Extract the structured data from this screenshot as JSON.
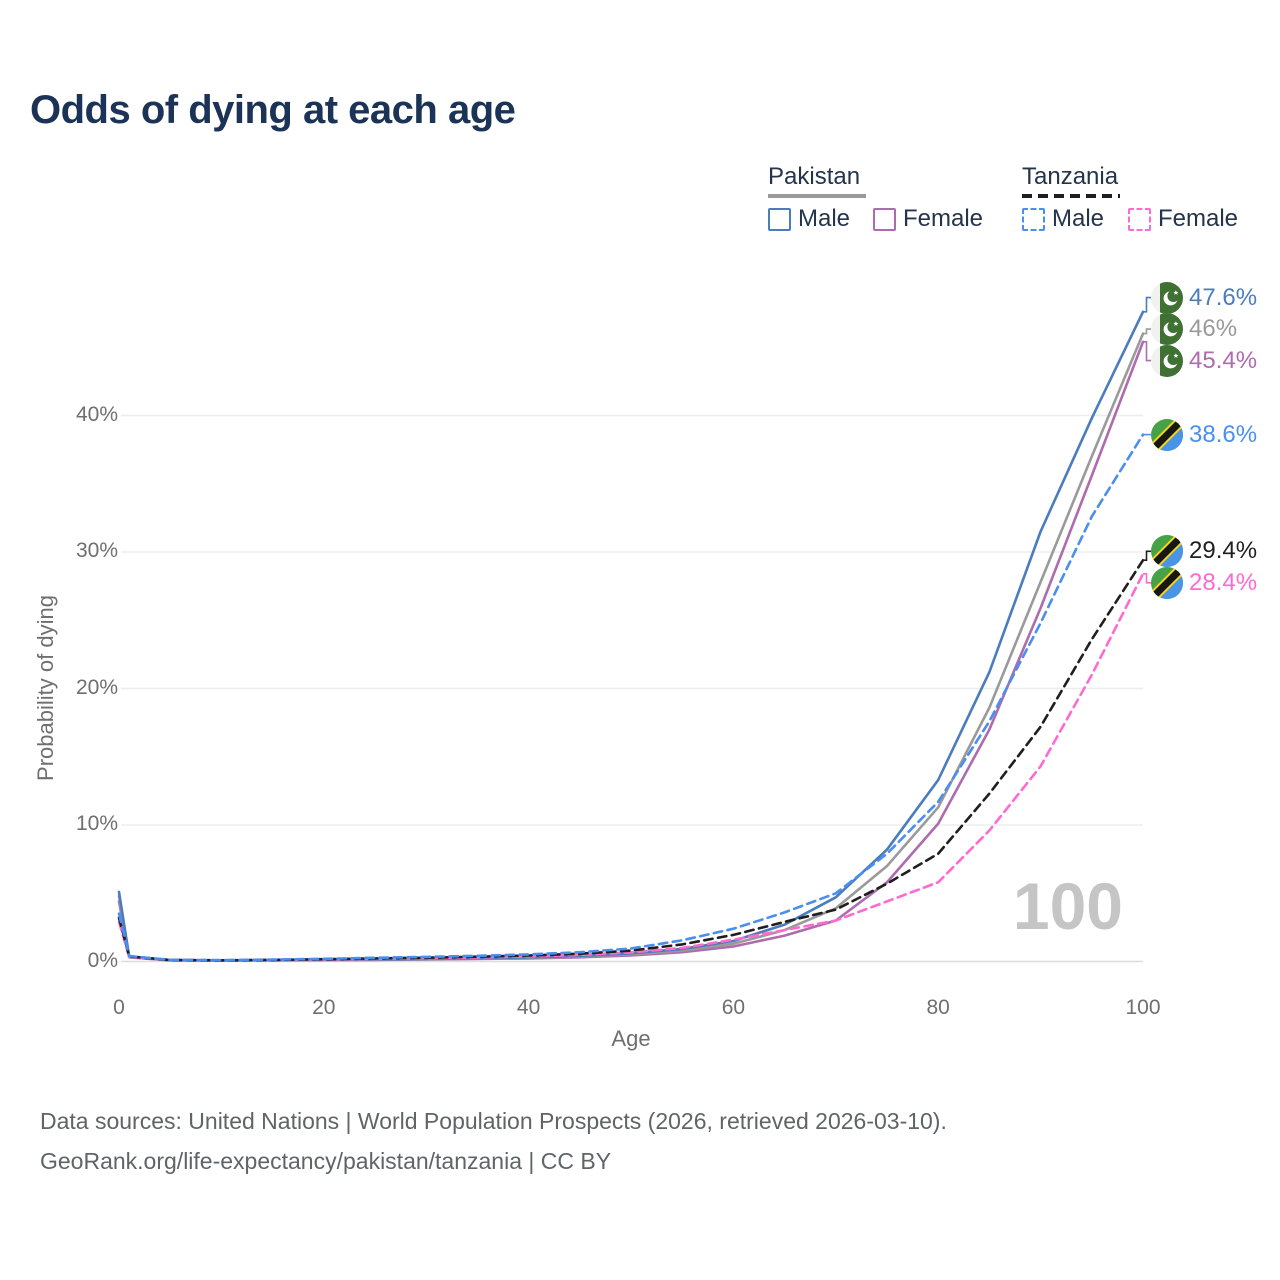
{
  "title": "Odds of dying at each age",
  "age_counter": "100",
  "legend": {
    "groups": [
      {
        "name": "Pakistan",
        "line_style": "solid",
        "underline_color": "#9a9a9a",
        "items": [
          {
            "label": "Male",
            "color": "#4a7cbe"
          },
          {
            "label": "Female",
            "color": "#ae6cae"
          }
        ]
      },
      {
        "name": "Tanzania",
        "line_style": "dashed",
        "underline_color": "#1f1f1f",
        "items": [
          {
            "label": "Male",
            "color": "#4a8ef0"
          },
          {
            "label": "Female",
            "color": "#ff6ad1"
          }
        ]
      }
    ]
  },
  "axes": {
    "x_ticks": [
      {
        "label": "0",
        "value": 0
      },
      {
        "label": "20",
        "value": 20
      },
      {
        "label": "40",
        "value": 40
      },
      {
        "label": "60",
        "value": 60
      },
      {
        "label": "80",
        "value": 80
      },
      {
        "label": "100",
        "value": 100
      }
    ],
    "y_ticks": [
      {
        "label": "0%",
        "value": 0
      },
      {
        "label": "10%",
        "value": 10
      },
      {
        "label": "20%",
        "value": 20
      },
      {
        "label": "30%",
        "value": 30
      },
      {
        "label": "40%",
        "value": 40
      }
    ]
  },
  "footer": {
    "line1": "Data sources: United Nations | World Population Prospects (2026, retrieved 2026-03-10).",
    "line2": "GeoRank.org/life-expectancy/pakistan/tanzania | CC BY"
  },
  "chart_data": {
    "type": "line",
    "title": "Odds of dying at each age",
    "xlabel": "Age",
    "ylabel": "Probability of dying",
    "xlim": [
      0,
      100
    ],
    "ylim": [
      0,
      48
    ],
    "grid": true,
    "legend_position": "top-right",
    "x": [
      0,
      1,
      5,
      10,
      15,
      20,
      25,
      30,
      35,
      40,
      45,
      50,
      55,
      60,
      65,
      70,
      75,
      80,
      85,
      90,
      95,
      100
    ],
    "series": [
      {
        "name": "Pakistan Female",
        "country": "pakistan",
        "style": "solid",
        "color": "#ae6cae",
        "end_label": "45.4%",
        "values": [
          4.4,
          0.31,
          0.08,
          0.06,
          0.08,
          0.1,
          0.12,
          0.15,
          0.18,
          0.23,
          0.31,
          0.45,
          0.68,
          1.1,
          1.9,
          3.0,
          5.8,
          10.1,
          17.0,
          25.9,
          35.6,
          45.4
        ]
      },
      {
        "name": "Pakistan Both sexes",
        "country": "pakistan",
        "style": "solid",
        "color": "#9a9a9a",
        "end_label": "46%",
        "values": [
          4.8,
          0.33,
          0.09,
          0.07,
          0.09,
          0.12,
          0.14,
          0.17,
          0.21,
          0.27,
          0.37,
          0.53,
          0.8,
          1.3,
          2.3,
          3.9,
          7.0,
          11.3,
          18.6,
          27.8,
          37.0,
          46.0
        ]
      },
      {
        "name": "Pakistan Male",
        "country": "pakistan",
        "style": "solid",
        "color": "#4a7cbe",
        "end_label": "47.6%",
        "values": [
          5.1,
          0.35,
          0.1,
          0.08,
          0.1,
          0.13,
          0.16,
          0.19,
          0.24,
          0.31,
          0.42,
          0.6,
          0.92,
          1.5,
          2.7,
          4.7,
          8.2,
          13.3,
          21.2,
          31.5,
          39.8,
          47.6
        ]
      },
      {
        "name": "Tanzania Female",
        "country": "tanzania",
        "style": "dashed",
        "color": "#ff6ad1",
        "end_label": "28.4%",
        "values": [
          2.9,
          0.34,
          0.1,
          0.08,
          0.11,
          0.15,
          0.19,
          0.24,
          0.29,
          0.37,
          0.48,
          0.67,
          1.0,
          1.6,
          2.3,
          3.0,
          4.4,
          5.8,
          9.6,
          14.3,
          21.0,
          28.4
        ]
      },
      {
        "name": "Tanzania Both sexes",
        "country": "tanzania",
        "style": "dashed",
        "color": "#1f1f1f",
        "end_label": "29.4%",
        "values": [
          3.2,
          0.37,
          0.11,
          0.09,
          0.12,
          0.17,
          0.23,
          0.28,
          0.35,
          0.44,
          0.57,
          0.8,
          1.25,
          1.95,
          2.9,
          3.8,
          5.7,
          7.9,
          12.3,
          17.2,
          23.6,
          29.4
        ]
      },
      {
        "name": "Tanzania Male",
        "country": "tanzania",
        "style": "dashed",
        "color": "#4a8ef0",
        "end_label": "38.6%",
        "values": [
          3.5,
          0.4,
          0.12,
          0.1,
          0.14,
          0.2,
          0.27,
          0.34,
          0.42,
          0.52,
          0.68,
          0.95,
          1.55,
          2.4,
          3.6,
          5.0,
          7.9,
          11.7,
          17.6,
          24.8,
          32.6,
          38.6
        ]
      }
    ]
  }
}
